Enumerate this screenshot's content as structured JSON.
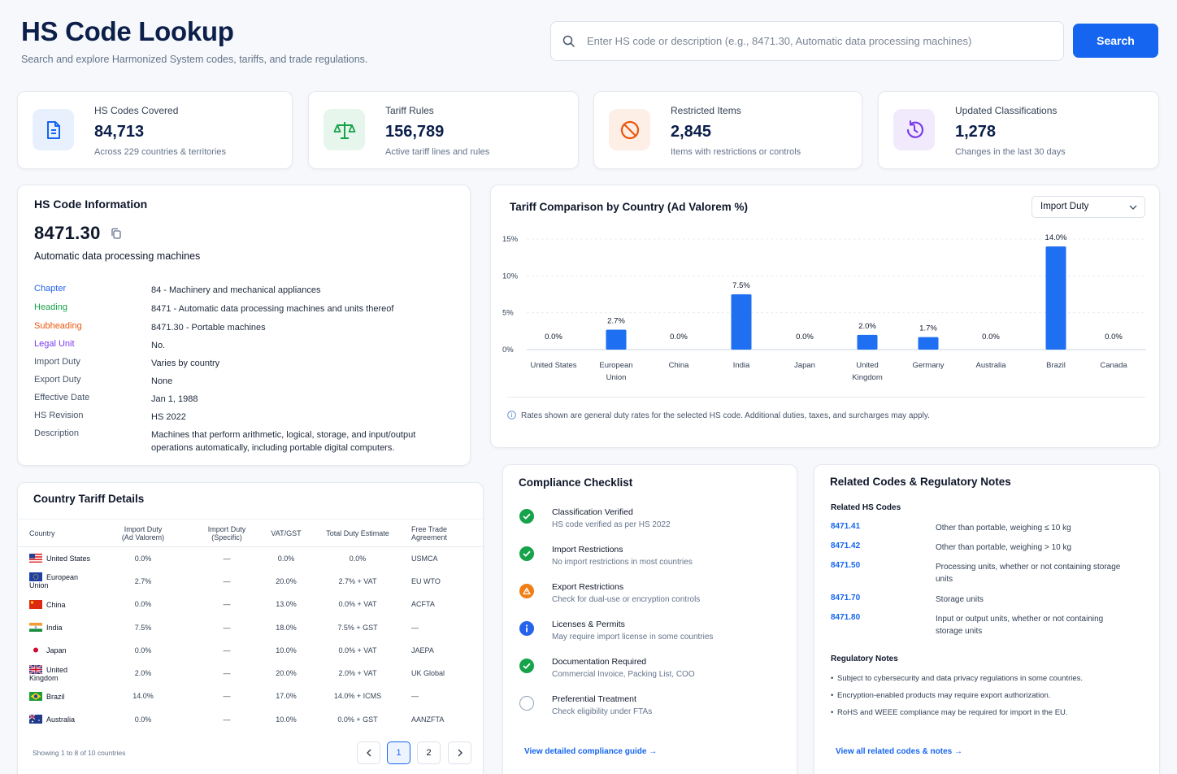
{
  "header": {
    "title": "HS Code Lookup",
    "subtitle": "Search and explore Harmonized System codes, tariffs, and trade regulations.",
    "search_placeholder": "Enter HS code or description (e.g., 8471.30, Automatic data processing machines)",
    "search_button": "Search"
  },
  "stats": [
    {
      "label": "HS Codes Covered",
      "value": "84,713",
      "note": "Across 229 countries & territories",
      "icon": "document-icon",
      "color": "#1565f0"
    },
    {
      "label": "Tariff Rules",
      "value": "156,789",
      "note": "Active tariff lines and rules",
      "icon": "scale-icon",
      "color": "#16a34a"
    },
    {
      "label": "Restricted Items",
      "value": "2,845",
      "note": "Items with restrictions or controls",
      "icon": "ban-icon",
      "color": "#ea580c"
    },
    {
      "label": "Updated Classifications",
      "value": "1,278",
      "note": "Changes in the last 30 days",
      "icon": "history-icon",
      "color": "#7c3aed"
    }
  ],
  "hs_info": {
    "title": "HS Code Information",
    "code": "8471.30",
    "description": "Automatic data processing machines",
    "rows": [
      {
        "key": "Chapter",
        "value": "84 - Machinery and mechanical appliances",
        "color": "#2563eb"
      },
      {
        "key": "Heading",
        "value": "8471 - Automatic data processing machines and units thereof",
        "color": "#16a34a"
      },
      {
        "key": "Subheading",
        "value": "8471.30 - Portable machines",
        "color": "#ea580c"
      },
      {
        "key": "Legal Unit",
        "value": "No.",
        "color": "#7c3aed"
      },
      {
        "key": "Import Duty",
        "value": "Varies by country",
        "color": "#475569"
      },
      {
        "key": "Export Duty",
        "value": "None",
        "color": "#475569"
      },
      {
        "key": "Effective Date",
        "value": "Jan 1, 1988",
        "color": "#475569"
      },
      {
        "key": "HS Revision",
        "value": "HS 2022",
        "color": "#475569"
      },
      {
        "key": "Description",
        "value": "Machines that perform arithmetic, logical, storage, and input/output operations automatically, including portable digital computers.",
        "color": "#475569"
      }
    ]
  },
  "tariff_chart": {
    "title": "Tariff Comparison by Country (Ad Valorem %)",
    "select_value": "Import Duty",
    "note": "Rates shown are general duty rates for the selected HS code. Additional duties, taxes, and surcharges may apply."
  },
  "chart_data": {
    "type": "bar",
    "title": "Tariff Comparison by Country (Ad Valorem %)",
    "categories": [
      "United States",
      "European Union",
      "China",
      "India",
      "Japan",
      "United Kingdom",
      "Germany",
      "Australia",
      "Brazil",
      "Canada"
    ],
    "values": [
      0.0,
      2.7,
      0.0,
      7.5,
      0.0,
      2.0,
      1.7,
      0.0,
      14.0,
      0.0
    ],
    "data_labels": [
      "0.0%",
      "2.7%",
      "0.0%",
      "7.5%",
      "0.0%",
      "2.0%",
      "1.7%",
      "0.0%",
      "14.0%",
      "0.0%"
    ],
    "ylim": [
      0,
      15
    ],
    "yticks": [
      "0%",
      "5%",
      "10%",
      "15%"
    ],
    "grid": true,
    "color": "#1f6ff2"
  },
  "country_table": {
    "title": "Country Tariff Details",
    "headers": [
      "Country",
      "Import Duty\n(Ad Valorem)",
      "Import Duty\n(Specific)",
      "VAT/GST",
      "Total Duty Estimate",
      "Free Trade Agreement"
    ],
    "rows": [
      {
        "country": "United States",
        "flag": "us",
        "ad_valorem": "0.0%",
        "specific": "—",
        "vat": "0.0%",
        "total": "0.0%",
        "fta": "USMCA"
      },
      {
        "country": "European Union",
        "flag": "eu",
        "ad_valorem": "2.7%",
        "specific": "—",
        "vat": "20.0%",
        "total": "2.7% + VAT",
        "fta": "EU WTO"
      },
      {
        "country": "China",
        "flag": "cn",
        "ad_valorem": "0.0%",
        "specific": "—",
        "vat": "13.0%",
        "total": "0.0% + VAT",
        "fta": "ACFTA"
      },
      {
        "country": "India",
        "flag": "in",
        "ad_valorem": "7.5%",
        "specific": "—",
        "vat": "18.0%",
        "total": "7.5% + GST",
        "fta": "—"
      },
      {
        "country": "Japan",
        "flag": "jp",
        "ad_valorem": "0.0%",
        "specific": "—",
        "vat": "10.0%",
        "total": "0.0% + VAT",
        "fta": "JAEPA"
      },
      {
        "country": "United Kingdom",
        "flag": "uk",
        "ad_valorem": "2.0%",
        "specific": "—",
        "vat": "20.0%",
        "total": "2.0% + VAT",
        "fta": "UK Global"
      },
      {
        "country": "Brazil",
        "flag": "br",
        "ad_valorem": "14.0%",
        "specific": "—",
        "vat": "17.0%",
        "total": "14.0% + ICMS",
        "fta": "—"
      },
      {
        "country": "Australia",
        "flag": "au",
        "ad_valorem": "0.0%",
        "specific": "—",
        "vat": "10.0%",
        "total": "0.0% + GST",
        "fta": "AANZFTA"
      }
    ],
    "pagination_info": "Showing 1 to 8 of 10 countries",
    "pages": [
      "1",
      "2"
    ],
    "current_page": "1"
  },
  "compliance": {
    "title": "Compliance Checklist",
    "items": [
      {
        "title": "Classification Verified",
        "subtitle": "HS code verified as per HS 2022",
        "status": "check"
      },
      {
        "title": "Import Restrictions",
        "subtitle": "No import restrictions in most countries",
        "status": "check"
      },
      {
        "title": "Export Restrictions",
        "subtitle": "Check for dual-use or encryption controls",
        "status": "warning"
      },
      {
        "title": "Licenses & Permits",
        "subtitle": "May require import license in some countries",
        "status": "info"
      },
      {
        "title": "Documentation Required",
        "subtitle": "Commercial Invoice, Packing List, COO",
        "status": "check"
      },
      {
        "title": "Preferential Treatment",
        "subtitle": "Check eligibility under FTAs",
        "status": "pending"
      }
    ],
    "link": "View detailed compliance guide"
  },
  "related": {
    "title": "Related Codes & Regulatory Notes",
    "codes_heading": "Related HS Codes",
    "codes": [
      {
        "code": "8471.41",
        "desc": "Other than portable, weighing ≤ 10 kg"
      },
      {
        "code": "8471.42",
        "desc": "Other than portable, weighing > 10 kg"
      },
      {
        "code": "8471.50",
        "desc": "Processing units, whether or not containing storage units"
      },
      {
        "code": "8471.70",
        "desc": "Storage units"
      },
      {
        "code": "8471.80",
        "desc": "Input or output units, whether or not containing storage units"
      }
    ],
    "notes_heading": "Regulatory Notes",
    "notes": [
      "Subject to cybersecurity and data privacy regulations in some countries.",
      "Encryption-enabled products may require export authorization.",
      "RoHS and WEEE compliance may be required for import in the EU."
    ],
    "link": "View all related codes & notes"
  }
}
